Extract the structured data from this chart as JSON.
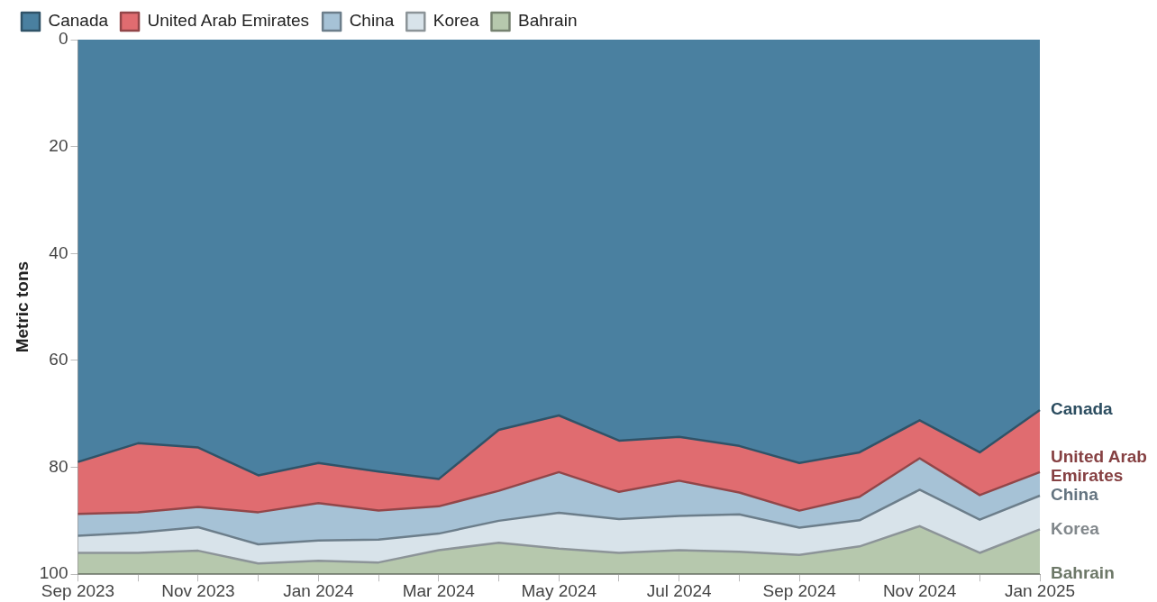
{
  "chart_data": {
    "type": "area",
    "stacked": true,
    "ylabel": "Metric tons",
    "legend": "top left",
    "ylim": [
      100,
      0
    ],
    "yticks": [
      0,
      20,
      40,
      60,
      80,
      100
    ],
    "grid": false,
    "categories": [
      "Sep 2023",
      null,
      "Nov 2023",
      null,
      "Jan 2024",
      null,
      "Mar 2024",
      null,
      "May 2024",
      null,
      "Jul 2024",
      null,
      "Sep 2024",
      null,
      "Nov 2024",
      null,
      "Jan 2025"
    ],
    "series": [
      {
        "name": "Canada",
        "color": "#4a80a0",
        "values": [
          79,
          75.5,
          76.3,
          81.5,
          79.2,
          80.8,
          82.2,
          73,
          70.3,
          75,
          74.3,
          76,
          79.2,
          77.2,
          71.2,
          77.2,
          69.3
        ]
      },
      {
        "name": "United Arab Emirates",
        "color": "#e06c70",
        "values": [
          9.7,
          12.9,
          11.1,
          6.9,
          7.5,
          7.3,
          5.1,
          11.4,
          10.6,
          9.6,
          8.2,
          8.7,
          8.9,
          8.3,
          7.1,
          8,
          11.6
        ]
      },
      {
        "name": "China",
        "color": "#a6c2d6",
        "values": [
          4.1,
          3.8,
          3.8,
          6,
          7,
          5.4,
          5.1,
          5.6,
          7.6,
          5.1,
          6.6,
          4.1,
          3.2,
          4.4,
          5.9,
          4.6,
          4.4
        ]
      },
      {
        "name": "Korea",
        "color": "#d8e3ea",
        "values": [
          3.2,
          3.8,
          4.4,
          3.6,
          3.8,
          4.3,
          3.1,
          4.1,
          6.7,
          6.3,
          6.4,
          7,
          5.1,
          4.9,
          6.8,
          6.2,
          6.3
        ]
      },
      {
        "name": "Bahrain",
        "color": "#b6c8ad",
        "values": [
          4,
          4,
          4.4,
          2,
          2.5,
          2.2,
          4.5,
          5.9,
          4.8,
          4,
          4.5,
          4.2,
          3.6,
          5.2,
          9,
          4,
          8.4
        ]
      }
    ]
  }
}
